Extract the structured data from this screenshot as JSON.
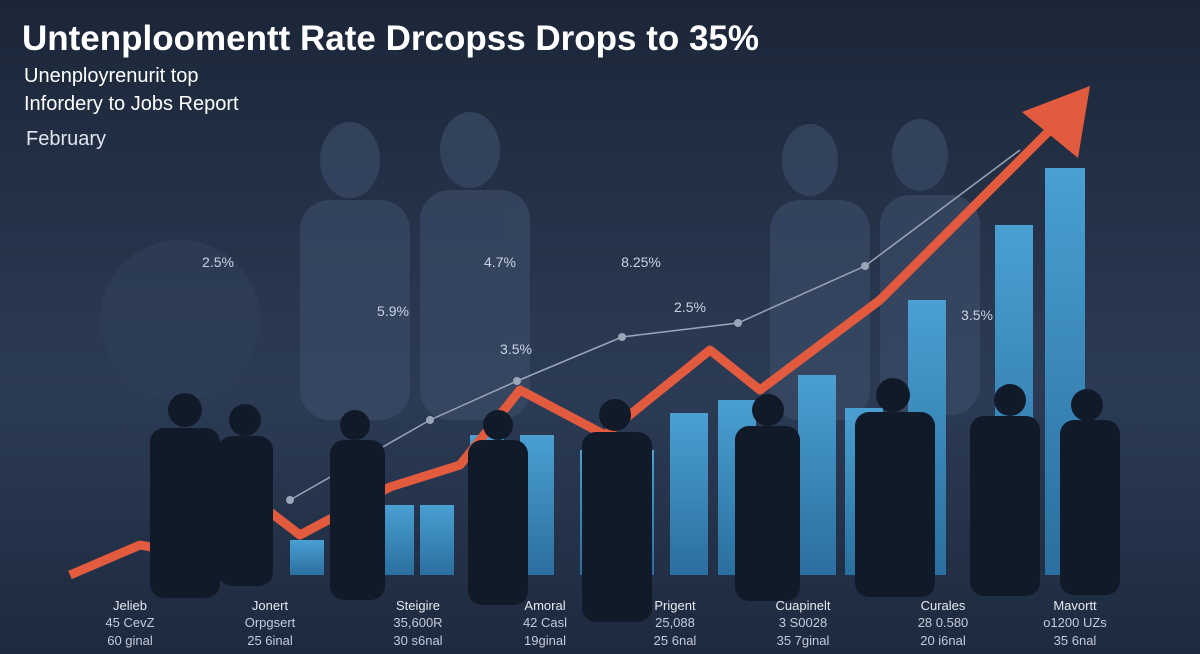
{
  "header": {
    "title": "Untenploomentt Rate Drcopss Drops to 35%",
    "subtitle": [
      "Unenployrenurit top",
      "Infordery to Jobs Report"
    ],
    "date": "February"
  },
  "annotations": [
    "2.5%",
    "5.9%",
    "4.7%",
    "3.5%",
    "8.25%",
    "2.5%",
    "3.5%"
  ],
  "columns": [
    {
      "name": "Jelieb",
      "line1": "45 CevZ",
      "line2": "60 ginal"
    },
    {
      "name": "Jonert",
      "line1": "Orpgsert",
      "line2": "25 6inal"
    },
    {
      "name": "Steigire",
      "line1": "35,600R",
      "line2": "30 s6nal"
    },
    {
      "name": "Amoral",
      "line1": "42 Casl",
      "line2": "19ginal"
    },
    {
      "name": "Prigent",
      "line1": "25,088",
      "line2": "25 6nal"
    },
    {
      "name": "Cuapinelt",
      "line1": "3 S0028",
      "line2": "35 7ginal"
    },
    {
      "name": "Curales",
      "line1": "28 0.580",
      "line2": "20 i6nal"
    },
    {
      "name": "Mavortt",
      "line1": "o1200 UZs",
      "line2": "35 6nal"
    }
  ]
}
